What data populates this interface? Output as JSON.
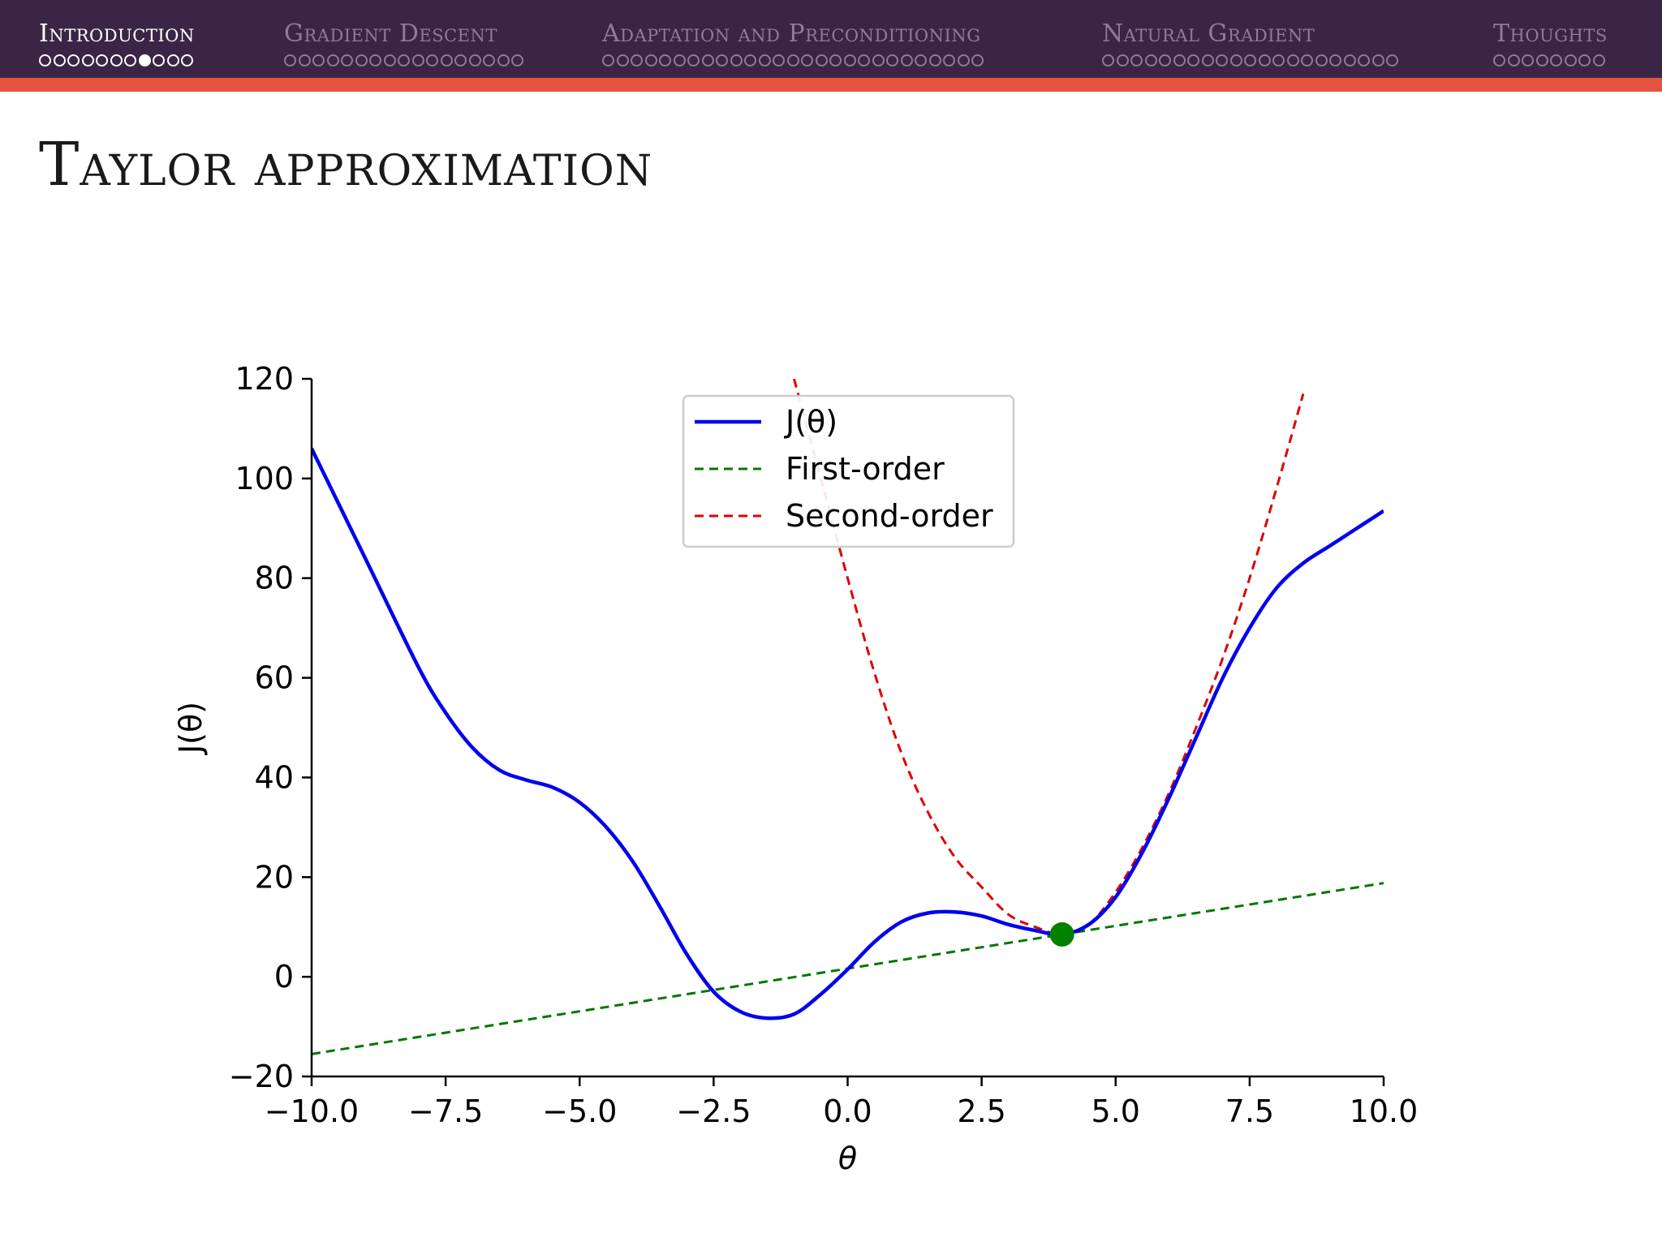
{
  "nav": {
    "sections": [
      {
        "title": "Introduction",
        "slides": 11,
        "current": 7,
        "active": true
      },
      {
        "title": "Gradient Descent",
        "slides": 17,
        "current": -1,
        "active": false
      },
      {
        "title": "Adaptation and Preconditioning",
        "slides": 27,
        "current": -1,
        "active": false
      },
      {
        "title": "Natural Gradient",
        "slides": 21,
        "current": -1,
        "active": false
      },
      {
        "title": "Thoughts",
        "slides": 8,
        "current": -1,
        "active": false
      }
    ]
  },
  "slide": {
    "title": "Taylor approximation"
  },
  "colors": {
    "header_bg": "#3b2547",
    "header_accent": "#e5533f",
    "j_theta": "#0000ee",
    "first_order": "#007700",
    "second_order": "#dd0000",
    "point": "#008000"
  },
  "chart_data": {
    "type": "line",
    "title": "",
    "xlabel": "θ",
    "ylabel": "J(θ)",
    "xlim": [
      -10,
      10
    ],
    "ylim": [
      -20,
      120
    ],
    "xticks": [
      -10.0,
      -7.5,
      -5.0,
      -2.5,
      0.0,
      2.5,
      5.0,
      7.5,
      10.0
    ],
    "xtick_labels": [
      "−10.0",
      "−7.5",
      "−5.0",
      "−2.5",
      "0.0",
      "2.5",
      "5.0",
      "7.5",
      "10.0"
    ],
    "yticks": [
      -20,
      0,
      20,
      40,
      60,
      80,
      100,
      120
    ],
    "ytick_labels": [
      "−20",
      "0",
      "20",
      "40",
      "60",
      "80",
      "100",
      "120"
    ],
    "grid": false,
    "legend": {
      "placement": "upper-center"
    },
    "expansion_point": {
      "x": 4.0,
      "y": 8.5
    },
    "series": [
      {
        "name": "J(θ)",
        "style": "solid",
        "x": [
          -10,
          -9,
          -8,
          -7.5,
          -7,
          -6.5,
          -6,
          -5.5,
          -5,
          -4.5,
          -4,
          -3.5,
          -3,
          -2.5,
          -2,
          -1.5,
          -1,
          -0.5,
          0,
          0.5,
          1,
          1.5,
          2,
          2.5,
          3,
          3.5,
          4,
          4.5,
          5,
          5.5,
          6,
          6.5,
          7,
          7.5,
          8,
          8.5,
          9,
          9.5,
          10
        ],
        "y": [
          106,
          84,
          62,
          53,
          46,
          41.5,
          39.5,
          38,
          35,
          30,
          23,
          14,
          4.5,
          -3,
          -7,
          -8.3,
          -7.5,
          -3.5,
          1.5,
          7,
          11,
          12.8,
          13,
          12.2,
          10.5,
          9.3,
          8.5,
          10.5,
          16,
          25,
          36,
          48,
          60,
          70,
          78,
          83,
          86.5,
          90,
          93.5
        ]
      },
      {
        "name": "First-order",
        "style": "dashed",
        "x": [
          -10,
          10
        ],
        "y": [
          -15.5,
          18.8
        ]
      },
      {
        "name": "Second-order",
        "style": "dashed",
        "x": [
          -1,
          -0.5,
          0,
          0.5,
          1,
          1.5,
          2,
          2.5,
          3,
          3.5,
          4,
          4.5,
          5,
          5.5,
          6,
          6.5,
          7,
          7.5,
          8,
          8.5
        ],
        "y": [
          120,
          100,
          80,
          61,
          45,
          33,
          24,
          18,
          12.5,
          10,
          8.5,
          10.5,
          17,
          26,
          37,
          50,
          64,
          80,
          98,
          117
        ]
      }
    ]
  }
}
